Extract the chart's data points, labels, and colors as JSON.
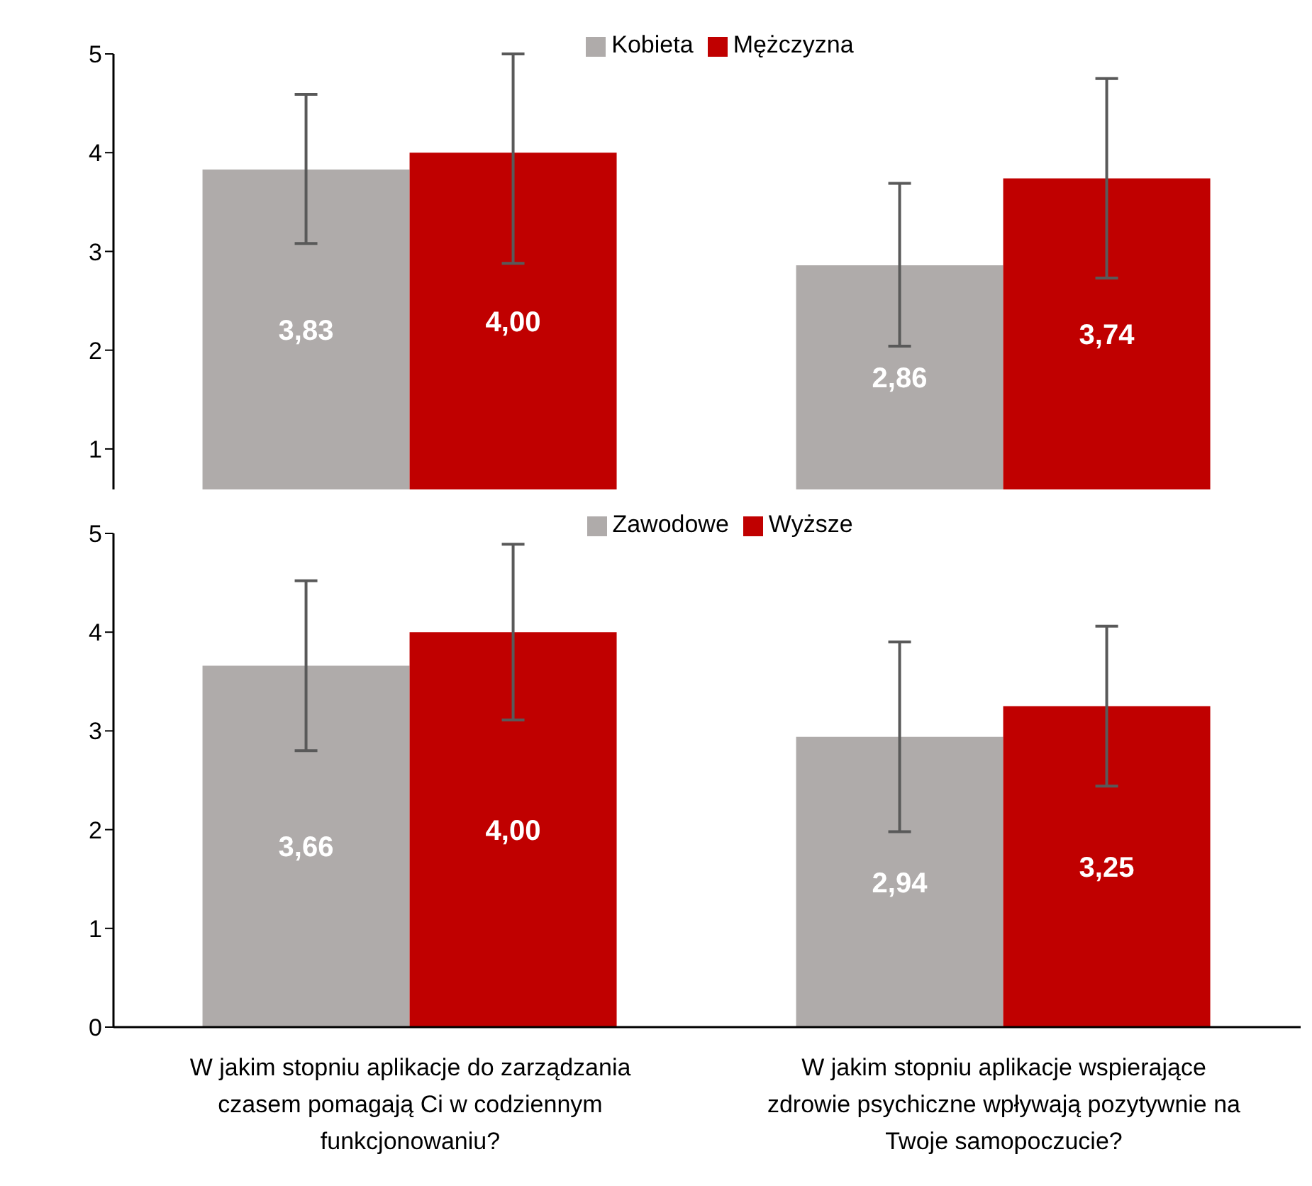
{
  "chart_data": [
    {
      "type": "bar",
      "categories": [
        null,
        null
      ],
      "tick_labels": "y",
      "ylim": [
        0.59,
        5
      ],
      "yticks": [
        1,
        2,
        3,
        4,
        5
      ],
      "legend": "top",
      "series": [
        {
          "name": "Kobieta",
          "color": "#afabaa",
          "values": [
            3.83,
            2.86
          ],
          "value_labels": [
            "3,83",
            "2,86"
          ],
          "errors": [
            [
              3.08,
              4.59
            ],
            [
              2.04,
              3.69
            ]
          ]
        },
        {
          "name": "Mężczyzna",
          "color": "#c00000",
          "values": [
            4.0,
            3.74
          ],
          "value_labels": [
            "4,00",
            "3,74"
          ],
          "errors": [
            [
              2.88,
              5
            ],
            [
              2.73,
              4.75
            ]
          ]
        }
      ]
    },
    {
      "type": "bar",
      "categories": [
        "W jakim stopniu aplikacje do zarządzania czasem pomagają Ci w codziennym funkcjonowaniu?",
        "W jakim stopniu aplikacje wspierające zdrowie psychiczne wpływają pozytywnie na Twoje samopoczucie?"
      ],
      "ylim": [
        0,
        5
      ],
      "yticks": [
        0,
        1,
        2,
        3,
        4,
        5
      ],
      "legend": "top",
      "series": [
        {
          "name": "Zawodowe",
          "color": "#afabaa",
          "values": [
            3.66,
            2.94
          ],
          "value_labels": [
            "3,66",
            "2,94"
          ],
          "errors": [
            [
              2.8,
              4.52
            ],
            [
              1.98,
              3.9
            ]
          ]
        },
        {
          "name": "Wyższe",
          "color": "#c00000",
          "values": [
            4.0,
            3.25
          ],
          "value_labels": [
            "4,00",
            "3,25"
          ],
          "errors": [
            [
              3.11,
              4.89
            ],
            [
              2.44,
              4.06
            ]
          ]
        }
      ]
    }
  ]
}
